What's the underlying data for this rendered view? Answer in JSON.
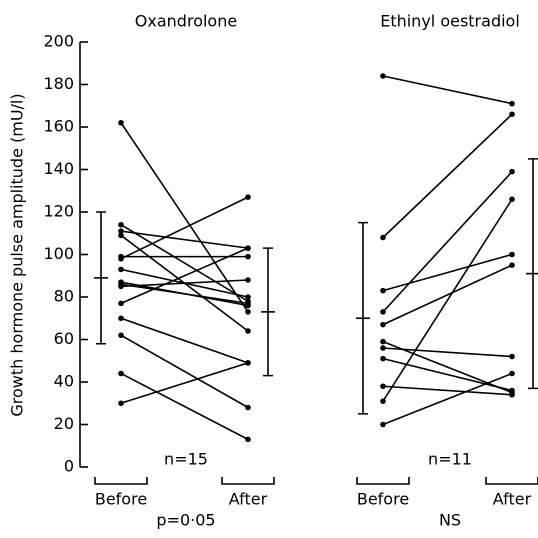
{
  "chart_data": {
    "type": "paired-dot",
    "y_label": "Growth hormone pulse amplitude (mU/l)",
    "ylim": [
      0,
      200
    ],
    "yticks": [
      0,
      20,
      40,
      60,
      80,
      100,
      120,
      140,
      160,
      180,
      200
    ],
    "color": "#000000",
    "panels": [
      {
        "title": "Oxandrolone",
        "categories": [
          "Before",
          "After"
        ],
        "n_label": "n=15",
        "p_label": "p=0·05",
        "before": [
          162,
          114,
          111,
          109,
          99,
          98,
          93,
          87,
          86,
          85,
          77,
          70,
          62,
          44,
          30
        ],
        "after": [
          73,
          78,
          103,
          64,
          99,
          127,
          80,
          76,
          77,
          88,
          103,
          49,
          28,
          13,
          49
        ],
        "mean": [
          89,
          73
        ],
        "sd": [
          31,
          30
        ]
      },
      {
        "title": "Ethinyl oestradiol",
        "categories": [
          "Before",
          "After"
        ],
        "n_label": "n=11",
        "p_label": "NS",
        "before": [
          184,
          108,
          83,
          73,
          67,
          59,
          56,
          51,
          38,
          31,
          20
        ],
        "after": [
          171,
          166,
          100,
          139,
          95,
          35,
          52,
          36,
          34,
          126,
          44
        ],
        "mean": [
          70,
          91
        ],
        "sd": [
          45,
          54
        ]
      }
    ]
  }
}
